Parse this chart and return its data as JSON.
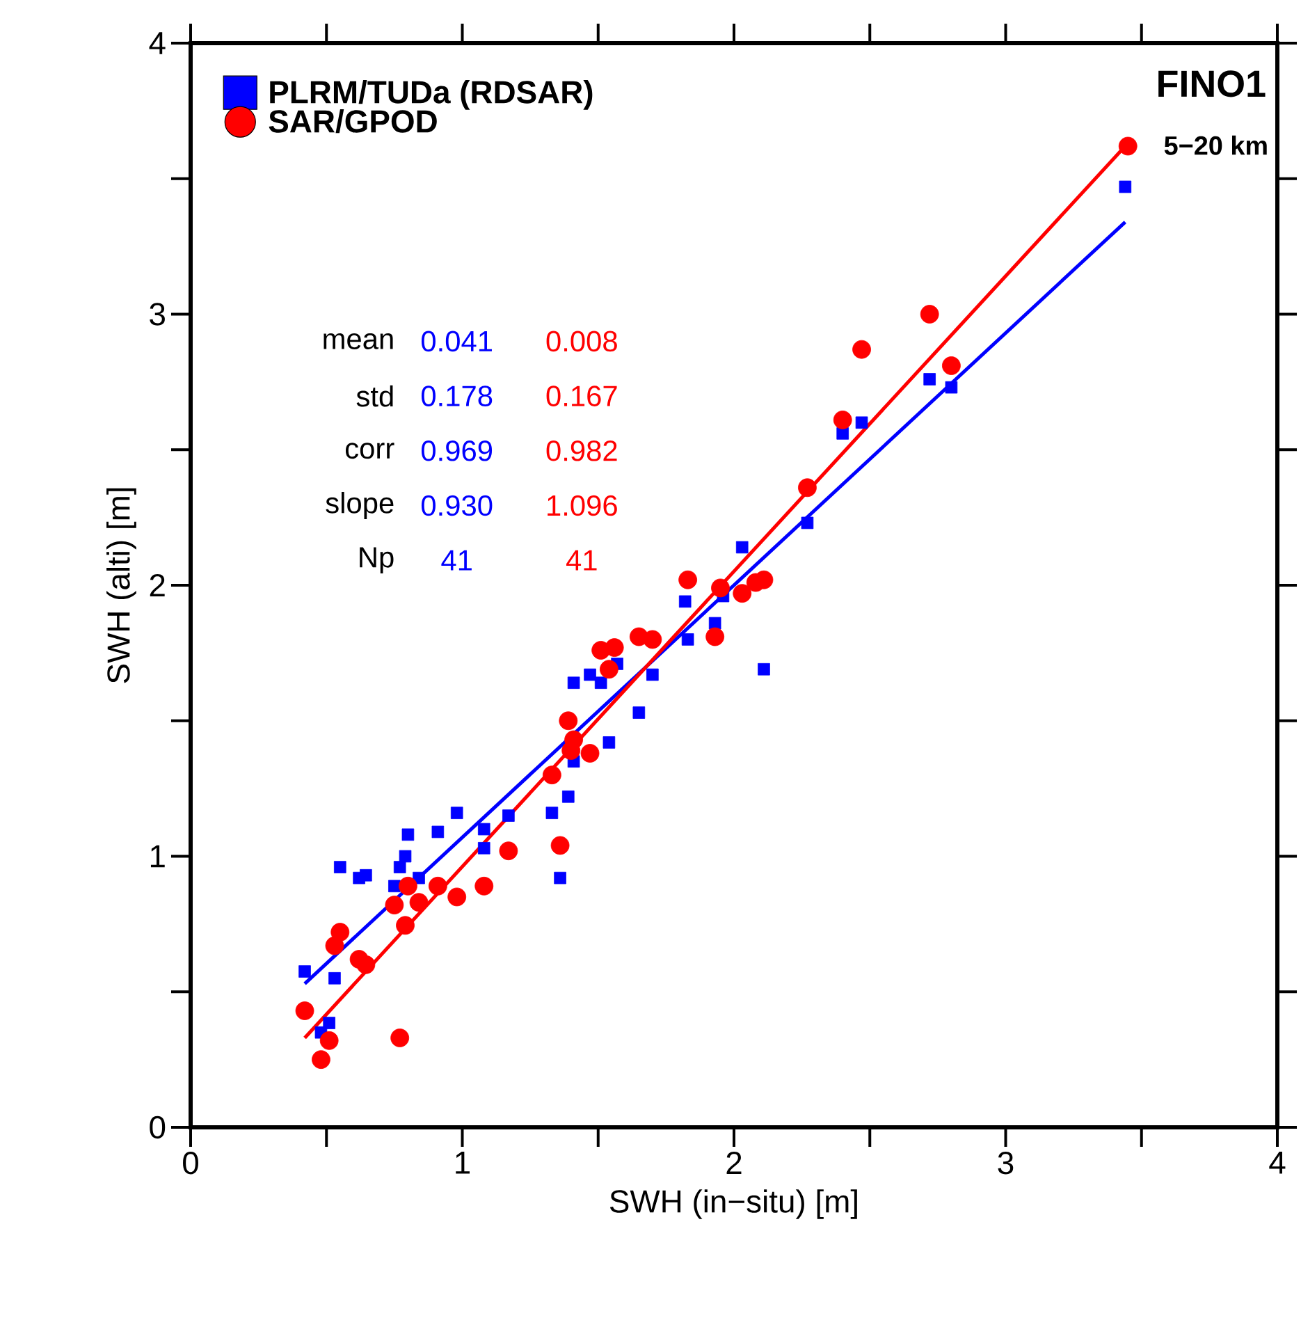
{
  "chart_data": {
    "type": "scatter",
    "title": "FINO1",
    "subtitle": "5−20 km",
    "xlabel": "SWH (in−situ) [m]",
    "ylabel": "SWH (alti) [m]",
    "xlim": [
      0,
      4
    ],
    "ylim": [
      0,
      4
    ],
    "xticks": [
      0,
      {
        "value": 0.5,
        "label": null
      },
      1,
      {
        "value": 1.5,
        "label": null
      },
      2,
      {
        "value": 2.5,
        "label": null
      },
      3,
      {
        "value": 3.5,
        "label": null
      },
      4
    ],
    "yticks": [
      0,
      {
        "value": 0.5,
        "label": null
      },
      1,
      {
        "value": 1.5,
        "label": null
      },
      2,
      {
        "value": 2.5,
        "label": null
      },
      3,
      {
        "value": 3.5,
        "label": null
      },
      4
    ],
    "grid": false,
    "legend": "top left",
    "annotations": [
      "mean",
      "0.041",
      "0.008",
      "std",
      "0.178",
      "0.167",
      "corr",
      "0.969",
      "0.982",
      "slope",
      "0.930",
      "1.096",
      "Np",
      "41",
      "41"
    ],
    "series": [
      {
        "name": "PLRM/TUDa (RDSAR)",
        "type": "scatter",
        "marker": "square",
        "color": "#0000ff",
        "x": [
          0.42,
          0.53,
          0.48,
          0.51,
          0.55,
          0.62,
          0.645,
          0.75,
          0.77,
          0.79,
          0.8,
          0.84,
          0.91,
          0.98,
          1.08,
          1.08,
          1.17,
          1.33,
          1.36,
          1.39,
          1.41,
          1.41,
          1.47,
          1.51,
          1.57,
          1.54,
          1.65,
          1.7,
          1.82,
          1.83,
          1.93,
          1.96,
          2.03,
          2.11,
          2.27,
          2.4,
          2.47,
          2.72,
          2.8,
          3.44
        ],
        "values": [
          0.575,
          0.55,
          0.35,
          0.385,
          0.96,
          0.92,
          0.93,
          0.89,
          0.96,
          1.0,
          1.08,
          0.92,
          1.09,
          1.16,
          1.1,
          1.03,
          1.15,
          1.16,
          0.92,
          1.22,
          1.35,
          1.64,
          1.67,
          1.64,
          1.71,
          1.42,
          1.53,
          1.67,
          1.94,
          1.8,
          1.86,
          1.96,
          2.14,
          1.69,
          2.23,
          2.56,
          2.6,
          2.76,
          2.73,
          3.47
        ]
      },
      {
        "name": "SAR/GPOD",
        "type": "scatter",
        "marker": "circle",
        "color": "#ff0000",
        "x": [
          0.42,
          0.48,
          0.51,
          0.53,
          0.55,
          0.62,
          0.645,
          0.75,
          0.77,
          0.79,
          0.8,
          0.84,
          0.91,
          0.98,
          1.08,
          1.17,
          1.33,
          1.36,
          1.39,
          1.4,
          1.41,
          1.47,
          1.51,
          1.56,
          1.54,
          1.65,
          1.7,
          1.83,
          1.95,
          1.93,
          2.03,
          2.08,
          2.11,
          2.27,
          2.4,
          2.47,
          2.72,
          2.8,
          3.45
        ],
        "values": [
          0.43,
          0.25,
          0.32,
          0.67,
          0.72,
          0.62,
          0.6,
          0.82,
          0.33,
          0.745,
          0.89,
          0.83,
          0.89,
          0.85,
          0.89,
          1.02,
          1.3,
          1.04,
          1.5,
          1.39,
          1.43,
          1.38,
          1.76,
          1.77,
          1.69,
          1.81,
          1.8,
          2.02,
          1.99,
          1.81,
          1.97,
          2.01,
          2.02,
          2.36,
          2.61,
          2.87,
          3.0,
          2.81,
          3.62
        ]
      },
      {
        "type": "line",
        "marker": "none",
        "color": "#0000ff",
        "x": [
          0.42,
          3.44
        ],
        "values": [
          0.53,
          3.34
        ]
      },
      {
        "type": "line",
        "marker": "none",
        "color": "#ff0000",
        "x": [
          0.42,
          3.44
        ],
        "values": [
          0.33,
          3.62
        ]
      }
    ]
  }
}
